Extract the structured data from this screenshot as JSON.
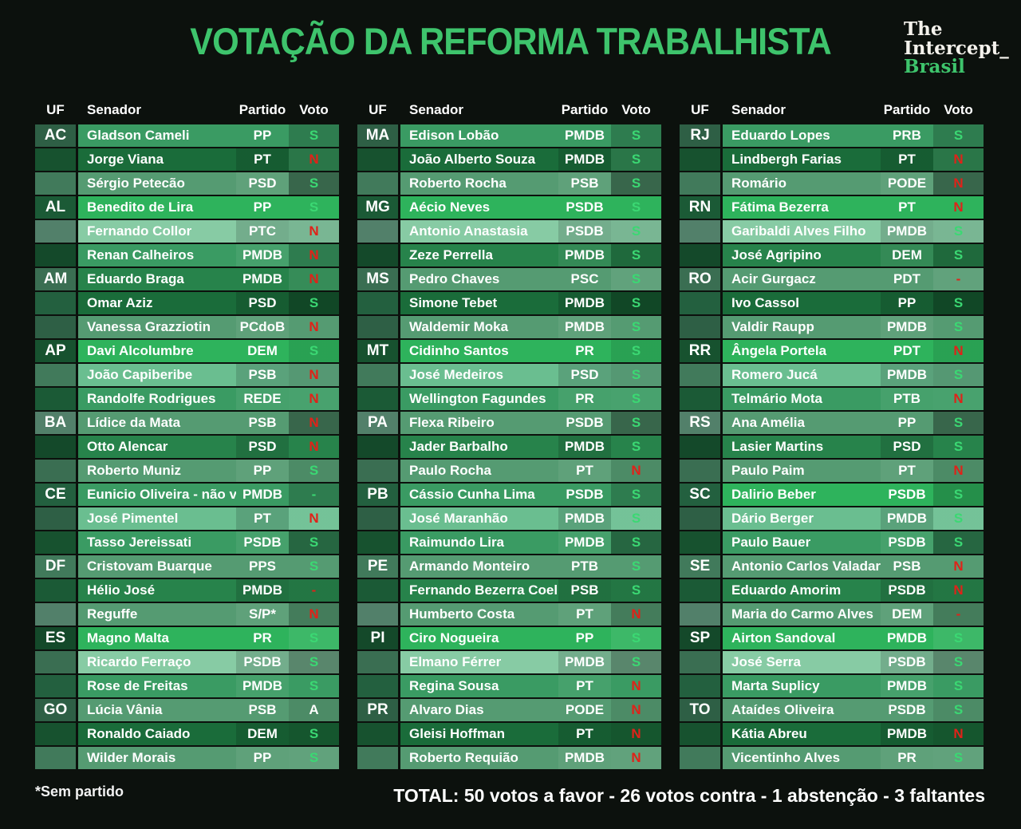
{
  "title": "VOTAÇÃO DA REFORMA TRABALHISTA",
  "logo": {
    "line1": "The",
    "line2": "Intercept_",
    "line3": "Brasil"
  },
  "headers": {
    "uf": "UF",
    "senador": "Senador",
    "partido": "Partido",
    "voto": "Voto"
  },
  "footnote": "*Sem partido",
  "total_label": "TOTAL: 50 votos a favor - 26 votos contra - 1 abstenção - 3 faltantes",
  "colors": {
    "background": "#0c110d",
    "accent_green": "#3ec46c",
    "vote_yes": "#3bd873",
    "vote_no": "#e02219",
    "vote_abstain": "#ffffff"
  },
  "chart_data": {
    "type": "table",
    "title": "VOTAÇÃO DA REFORMA TRABALHISTA",
    "columns": [
      "UF",
      "Senador",
      "Partido",
      "Voto"
    ],
    "totals": {
      "favor": 50,
      "contra": 26,
      "abstencao": 1,
      "faltantes": 3
    },
    "tables": [
      {
        "rows": [
          {
            "uf": "AC",
            "senador": "Gladson Cameli",
            "partido": "PP",
            "voto": "S",
            "status": "favor",
            "shade": "m"
          },
          {
            "uf": "",
            "senador": "Jorge Viana",
            "partido": "PT",
            "voto": "N",
            "status": "contra",
            "shade": "d"
          },
          {
            "uf": "",
            "senador": "Sérgio Petecão",
            "partido": "PSD",
            "voto": "S",
            "status": "favor",
            "shade": "u"
          },
          {
            "uf": "AL",
            "senador": "Benedito de Lira",
            "partido": "PP",
            "voto": "S",
            "status": "favor",
            "shade": "b"
          },
          {
            "uf": "",
            "senador": "Fernando Collor",
            "partido": "PTC",
            "voto": "N",
            "status": "contra",
            "shade": "p"
          },
          {
            "uf": "",
            "senador": "Renan Calheiros",
            "partido": "PMDB",
            "voto": "N",
            "status": "contra",
            "shade": "m"
          },
          {
            "uf": "AM",
            "senador": "Eduardo Braga",
            "partido": "PMDB",
            "voto": "N",
            "status": "contra",
            "shade": "md"
          },
          {
            "uf": "",
            "senador": "Omar Aziz",
            "partido": "PSD",
            "voto": "S",
            "status": "favor",
            "shade": "d"
          },
          {
            "uf": "",
            "senador": "Vanessa Grazziotin",
            "partido": "PCdoB",
            "voto": "N",
            "status": "contra",
            "shade": "u"
          },
          {
            "uf": "AP",
            "senador": "Davi Alcolumbre",
            "partido": "DEM",
            "voto": "S",
            "status": "favor",
            "shade": "b"
          },
          {
            "uf": "",
            "senador": "João Capiberibe",
            "partido": "PSB",
            "voto": "N",
            "status": "contra",
            "shade": "l"
          },
          {
            "uf": "",
            "senador": "Randolfe Rodrigues",
            "partido": "REDE",
            "voto": "N",
            "status": "contra",
            "shade": "m"
          },
          {
            "uf": "BA",
            "senador": "Lídice da Mata",
            "partido": "PSB",
            "voto": "N",
            "status": "contra",
            "shade": "u"
          },
          {
            "uf": "",
            "senador": "Otto Alencar",
            "partido": "PSD",
            "voto": "N",
            "status": "contra",
            "shade": "md"
          },
          {
            "uf": "",
            "senador": "Roberto Muniz",
            "partido": "PP",
            "voto": "S",
            "status": "favor",
            "shade": "u"
          },
          {
            "uf": "CE",
            "senador": "Eunicio Oliveira - não vota",
            "partido": "PMDB",
            "voto": "-",
            "status": "nao_vota",
            "shade": "m"
          },
          {
            "uf": "",
            "senador": "José Pimentel",
            "partido": "PT",
            "voto": "N",
            "status": "contra",
            "shade": "l"
          },
          {
            "uf": "",
            "senador": "Tasso Jereissati",
            "partido": "PSDB",
            "voto": "S",
            "status": "favor",
            "shade": "m"
          },
          {
            "uf": "DF",
            "senador": "Cristovam Buarque",
            "partido": "PPS",
            "voto": "S",
            "status": "favor",
            "shade": "u"
          },
          {
            "uf": "",
            "senador": "Hélio José",
            "partido": "PMDB",
            "voto": "-",
            "status": "faltante",
            "shade": "md"
          },
          {
            "uf": "",
            "senador": "Reguffe",
            "partido": "S/P*",
            "voto": "N",
            "status": "contra",
            "shade": "u"
          },
          {
            "uf": "ES",
            "senador": "Magno Malta",
            "partido": "PR",
            "voto": "S",
            "status": "favor",
            "shade": "b"
          },
          {
            "uf": "",
            "senador": "Ricardo Ferraço",
            "partido": "PSDB",
            "voto": "S",
            "status": "favor",
            "shade": "p"
          },
          {
            "uf": "",
            "senador": "Rose de Freitas",
            "partido": "PMDB",
            "voto": "S",
            "status": "favor",
            "shade": "m"
          },
          {
            "uf": "GO",
            "senador": "Lúcia Vânia",
            "partido": "PSB",
            "voto": "A",
            "status": "abstencao",
            "shade": "u"
          },
          {
            "uf": "",
            "senador": "Ronaldo Caiado",
            "partido": "DEM",
            "voto": "S",
            "status": "favor",
            "shade": "d"
          },
          {
            "uf": "",
            "senador": "Wilder Morais",
            "partido": "PP",
            "voto": "S",
            "status": "favor",
            "shade": "u"
          }
        ]
      },
      {
        "rows": [
          {
            "uf": "MA",
            "senador": "Edison Lobão",
            "partido": "PMDB",
            "voto": "S",
            "status": "favor",
            "shade": "m"
          },
          {
            "uf": "",
            "senador": "João Alberto Souza",
            "partido": "PMDB",
            "voto": "S",
            "status": "favor",
            "shade": "d"
          },
          {
            "uf": "",
            "senador": "Roberto Rocha",
            "partido": "PSB",
            "voto": "S",
            "status": "favor",
            "shade": "u"
          },
          {
            "uf": "MG",
            "senador": "Aécio Neves",
            "partido": "PSDB",
            "voto": "S",
            "status": "favor",
            "shade": "b"
          },
          {
            "uf": "",
            "senador": "Antonio Anastasia",
            "partido": "PSDB",
            "voto": "S",
            "status": "favor",
            "shade": "p"
          },
          {
            "uf": "",
            "senador": "Zeze Perrella",
            "partido": "PMDB",
            "voto": "S",
            "status": "favor",
            "shade": "md"
          },
          {
            "uf": "MS",
            "senador": "Pedro Chaves",
            "partido": "PSC",
            "voto": "S",
            "status": "favor",
            "shade": "u"
          },
          {
            "uf": "",
            "senador": "Simone Tebet",
            "partido": "PMDB",
            "voto": "S",
            "status": "favor",
            "shade": "d"
          },
          {
            "uf": "",
            "senador": "Waldemir Moka",
            "partido": "PMDB",
            "voto": "S",
            "status": "favor",
            "shade": "u"
          },
          {
            "uf": "MT",
            "senador": "Cidinho Santos",
            "partido": "PR",
            "voto": "S",
            "status": "favor",
            "shade": "b"
          },
          {
            "uf": "",
            "senador": "José Medeiros",
            "partido": "PSD",
            "voto": "S",
            "status": "favor",
            "shade": "l"
          },
          {
            "uf": "",
            "senador": "Wellington Fagundes",
            "partido": "PR",
            "voto": "S",
            "status": "favor",
            "shade": "m"
          },
          {
            "uf": "PA",
            "senador": "Flexa Ribeiro",
            "partido": "PSDB",
            "voto": "S",
            "status": "favor",
            "shade": "u"
          },
          {
            "uf": "",
            "senador": "Jader Barbalho",
            "partido": "PMDB",
            "voto": "S",
            "status": "favor",
            "shade": "md"
          },
          {
            "uf": "",
            "senador": "Paulo Rocha",
            "partido": "PT",
            "voto": "N",
            "status": "contra",
            "shade": "u"
          },
          {
            "uf": "PB",
            "senador": "Cássio Cunha Lima",
            "partido": "PSDB",
            "voto": "S",
            "status": "favor",
            "shade": "m"
          },
          {
            "uf": "",
            "senador": "José Maranhão",
            "partido": "PMDB",
            "voto": "S",
            "status": "favor",
            "shade": "l"
          },
          {
            "uf": "",
            "senador": "Raimundo Lira",
            "partido": "PMDB",
            "voto": "S",
            "status": "favor",
            "shade": "m"
          },
          {
            "uf": "PE",
            "senador": "Armando Monteiro",
            "partido": "PTB",
            "voto": "S",
            "status": "favor",
            "shade": "u"
          },
          {
            "uf": "",
            "senador": "Fernando Bezerra Coelho",
            "partido": "PSB",
            "voto": "S",
            "status": "favor",
            "shade": "md"
          },
          {
            "uf": "",
            "senador": "Humberto Costa",
            "partido": "PT",
            "voto": "N",
            "status": "contra",
            "shade": "u"
          },
          {
            "uf": "PI",
            "senador": "Ciro Nogueira",
            "partido": "PP",
            "voto": "S",
            "status": "favor",
            "shade": "b"
          },
          {
            "uf": "",
            "senador": "Elmano Férrer",
            "partido": "PMDB",
            "voto": "S",
            "status": "favor",
            "shade": "p"
          },
          {
            "uf": "",
            "senador": "Regina Sousa",
            "partido": "PT",
            "voto": "N",
            "status": "contra",
            "shade": "m"
          },
          {
            "uf": "PR",
            "senador": "Alvaro Dias",
            "partido": "PODE",
            "voto": "N",
            "status": "contra",
            "shade": "u"
          },
          {
            "uf": "",
            "senador": "Gleisi Hoffman",
            "partido": "PT",
            "voto": "N",
            "status": "contra",
            "shade": "d"
          },
          {
            "uf": "",
            "senador": "Roberto Requião",
            "partido": "PMDB",
            "voto": "N",
            "status": "contra",
            "shade": "u"
          }
        ]
      },
      {
        "rows": [
          {
            "uf": "RJ",
            "senador": "Eduardo Lopes",
            "partido": "PRB",
            "voto": "S",
            "status": "favor",
            "shade": "m"
          },
          {
            "uf": "",
            "senador": "Lindbergh Farias",
            "partido": "PT",
            "voto": "N",
            "status": "contra",
            "shade": "d"
          },
          {
            "uf": "",
            "senador": "Romário",
            "partido": "PODE",
            "voto": "N",
            "status": "contra",
            "shade": "u"
          },
          {
            "uf": "RN",
            "senador": "Fátima Bezerra",
            "partido": "PT",
            "voto": "N",
            "status": "contra",
            "shade": "b"
          },
          {
            "uf": "",
            "senador": "Garibaldi Alves Filho",
            "partido": "PMDB",
            "voto": "S",
            "status": "favor",
            "shade": "p"
          },
          {
            "uf": "",
            "senador": "José Agripino",
            "partido": "DEM",
            "voto": "S",
            "status": "favor",
            "shade": "md"
          },
          {
            "uf": "RO",
            "senador": "Acir Gurgacz",
            "partido": "PDT",
            "voto": "-",
            "status": "faltante",
            "shade": "u"
          },
          {
            "uf": "",
            "senador": "Ivo Cassol",
            "partido": "PP",
            "voto": "S",
            "status": "favor",
            "shade": "d"
          },
          {
            "uf": "",
            "senador": "Valdir Raupp",
            "partido": "PMDB",
            "voto": "S",
            "status": "favor",
            "shade": "u"
          },
          {
            "uf": "RR",
            "senador": "Ângela Portela",
            "partido": "PDT",
            "voto": "N",
            "status": "contra",
            "shade": "b"
          },
          {
            "uf": "",
            "senador": "Romero Jucá",
            "partido": "PMDB",
            "voto": "S",
            "status": "favor",
            "shade": "l"
          },
          {
            "uf": "",
            "senador": "Telmário Mota",
            "partido": "PTB",
            "voto": "N",
            "status": "contra",
            "shade": "m"
          },
          {
            "uf": "RS",
            "senador": "Ana Amélia",
            "partido": "PP",
            "voto": "S",
            "status": "favor",
            "shade": "u"
          },
          {
            "uf": "",
            "senador": "Lasier Martins",
            "partido": "PSD",
            "voto": "S",
            "status": "favor",
            "shade": "md"
          },
          {
            "uf": "",
            "senador": "Paulo Paim",
            "partido": "PT",
            "voto": "N",
            "status": "contra",
            "shade": "u"
          },
          {
            "uf": "SC",
            "senador": "Dalirio Beber",
            "partido": "PSDB",
            "voto": "S",
            "status": "favor",
            "shade": "b"
          },
          {
            "uf": "",
            "senador": "Dário Berger",
            "partido": "PMDB",
            "voto": "S",
            "status": "favor",
            "shade": "l"
          },
          {
            "uf": "",
            "senador": "Paulo Bauer",
            "partido": "PSDB",
            "voto": "S",
            "status": "favor",
            "shade": "m"
          },
          {
            "uf": "SE",
            "senador": "Antonio Carlos Valadares",
            "partido": "PSB",
            "voto": "N",
            "status": "contra",
            "shade": "u"
          },
          {
            "uf": "",
            "senador": "Eduardo Amorim",
            "partido": "PSDB",
            "voto": "N",
            "status": "contra",
            "shade": "md"
          },
          {
            "uf": "",
            "senador": "Maria do Carmo Alves",
            "partido": "DEM",
            "voto": "-",
            "status": "faltante",
            "shade": "u"
          },
          {
            "uf": "SP",
            "senador": "Airton Sandoval",
            "partido": "PMDB",
            "voto": "S",
            "status": "favor",
            "shade": "b"
          },
          {
            "uf": "",
            "senador": "José Serra",
            "partido": "PSDB",
            "voto": "S",
            "status": "favor",
            "shade": "p"
          },
          {
            "uf": "",
            "senador": "Marta Suplicy",
            "partido": "PMDB",
            "voto": "S",
            "status": "favor",
            "shade": "m"
          },
          {
            "uf": "TO",
            "senador": "Ataídes Oliveira",
            "partido": "PSDB",
            "voto": "S",
            "status": "favor",
            "shade": "u"
          },
          {
            "uf": "",
            "senador": "Kátia Abreu",
            "partido": "PMDB",
            "voto": "N",
            "status": "contra",
            "shade": "d"
          },
          {
            "uf": "",
            "senador": "Vicentinho Alves",
            "partido": "PR",
            "voto": "S",
            "status": "favor",
            "shade": "u"
          }
        ]
      }
    ]
  }
}
